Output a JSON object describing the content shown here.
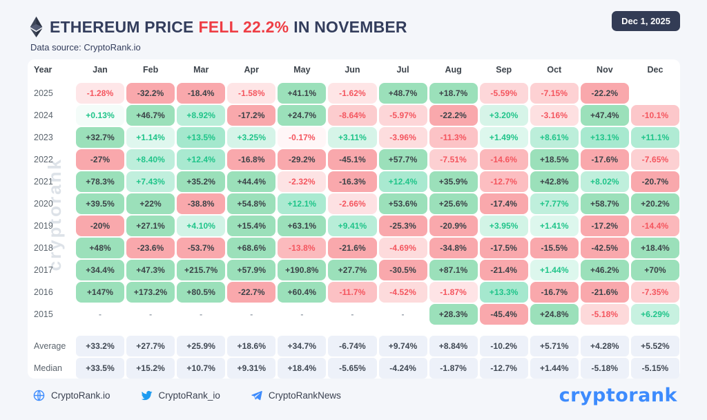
{
  "header": {
    "title_prefix": "ETHEREUM PRICE",
    "title_highlight": "FELL 22.2%",
    "title_suffix": "IN NOVEMBER",
    "data_source": "Data source: CryptoRank.io",
    "date_badge": "Dec 1, 2025"
  },
  "watermark": "cryptorank",
  "chart_data": {
    "type": "heatmap",
    "title": "Ethereum monthly price change by year (%)",
    "columns": [
      "Year",
      "Jan",
      "Feb",
      "Mar",
      "Apr",
      "May",
      "Jun",
      "Jul",
      "Aug",
      "Sep",
      "Oct",
      "Nov",
      "Dec"
    ],
    "rows": [
      {
        "year": "2025",
        "values": [
          "-1.28%",
          "-32.2%",
          "-18.4%",
          "-1.58%",
          "+41.1%",
          "-1.62%",
          "+48.7%",
          "+18.7%",
          "-5.59%",
          "-7.15%",
          "-22.2%",
          ""
        ]
      },
      {
        "year": "2024",
        "values": [
          "+0.13%",
          "+46.7%",
          "+8.92%",
          "-17.2%",
          "+24.7%",
          "-8.64%",
          "-5.97%",
          "-22.2%",
          "+3.20%",
          "-3.16%",
          "+47.4%",
          "-10.1%"
        ]
      },
      {
        "year": "2023",
        "values": [
          "+32.7%",
          "+1.14%",
          "+13.5%",
          "+3.25%",
          "-0.17%",
          "+3.11%",
          "-3.96%",
          "-11.3%",
          "+1.49%",
          "+8.61%",
          "+13.1%",
          "+11.1%"
        ]
      },
      {
        "year": "2022",
        "values": [
          "-27%",
          "+8.40%",
          "+12.4%",
          "-16.8%",
          "-29.2%",
          "-45.1%",
          "+57.7%",
          "-7.51%",
          "-14.6%",
          "+18.5%",
          "-17.6%",
          "-7.65%"
        ]
      },
      {
        "year": "2021",
        "values": [
          "+78.3%",
          "+7.43%",
          "+35.2%",
          "+44.4%",
          "-2.32%",
          "-16.3%",
          "+12.4%",
          "+35.9%",
          "-12.7%",
          "+42.8%",
          "+8.02%",
          "-20.7%"
        ]
      },
      {
        "year": "2020",
        "values": [
          "+39.5%",
          "+22%",
          "-38.8%",
          "+54.8%",
          "+12.1%",
          "-2.66%",
          "+53.6%",
          "+25.6%",
          "-17.4%",
          "+7.77%",
          "+58.7%",
          "+20.2%"
        ]
      },
      {
        "year": "2019",
        "values": [
          "-20%",
          "+27.1%",
          "+4.10%",
          "+15.4%",
          "+63.1%",
          "+9.41%",
          "-25.3%",
          "-20.9%",
          "+3.95%",
          "+1.41%",
          "-17.2%",
          "-14.4%"
        ]
      },
      {
        "year": "2018",
        "values": [
          "+48%",
          "-23.6%",
          "-53.7%",
          "+68.6%",
          "-13.8%",
          "-21.6%",
          "-4.69%",
          "-34.8%",
          "-17.5%",
          "-15.5%",
          "-42.5%",
          "+18.4%"
        ]
      },
      {
        "year": "2017",
        "values": [
          "+34.4%",
          "+47.3%",
          "+215.7%",
          "+57.9%",
          "+190.8%",
          "+27.7%",
          "-30.5%",
          "+87.1%",
          "-21.4%",
          "+1.44%",
          "+46.2%",
          "+70%"
        ]
      },
      {
        "year": "2016",
        "values": [
          "+147%",
          "+173.2%",
          "+80.5%",
          "-22.7%",
          "+60.4%",
          "-11.7%",
          "-4.52%",
          "-1.87%",
          "+13.3%",
          "-16.7%",
          "-21.6%",
          "-7.35%"
        ]
      },
      {
        "year": "2015",
        "values": [
          "-",
          "-",
          "-",
          "-",
          "-",
          "-",
          "-",
          "+28.3%",
          "-45.4%",
          "+24.8%",
          "-5.18%",
          "+6.29%"
        ]
      }
    ],
    "summary_rows": [
      {
        "label": "Average",
        "values": [
          "+33.2%",
          "+27.7%",
          "+25.9%",
          "+18.6%",
          "+34.7%",
          "-6.74%",
          "+9.74%",
          "+8.84%",
          "-10.2%",
          "+5.71%",
          "+4.28%",
          "+5.52%"
        ]
      },
      {
        "label": "Median",
        "values": [
          "+33.5%",
          "+15.2%",
          "+10.7%",
          "+9.31%",
          "+18.4%",
          "-5.65%",
          "-4.24%",
          "-1.87%",
          "-12.7%",
          "+1.44%",
          "-5.18%",
          "-5.15%"
        ]
      }
    ],
    "colors": {
      "positive_strong_bg": "#9be0ba",
      "negative_strong_bg": "#f9a8ac",
      "positive_text": "#1fc489",
      "negative_text": "#f4555e",
      "strong_text": "#3b4247",
      "summary_bg": "#edf1f9",
      "strong_threshold_pct": 15
    }
  },
  "footer": {
    "links": [
      {
        "icon": "globe-icon",
        "label": "CryptoRank.io"
      },
      {
        "icon": "twitter-icon",
        "label": "CryptoRank_io"
      },
      {
        "icon": "telegram-icon",
        "label": "CryptoRankNews"
      }
    ],
    "logo": "cryptorank"
  }
}
